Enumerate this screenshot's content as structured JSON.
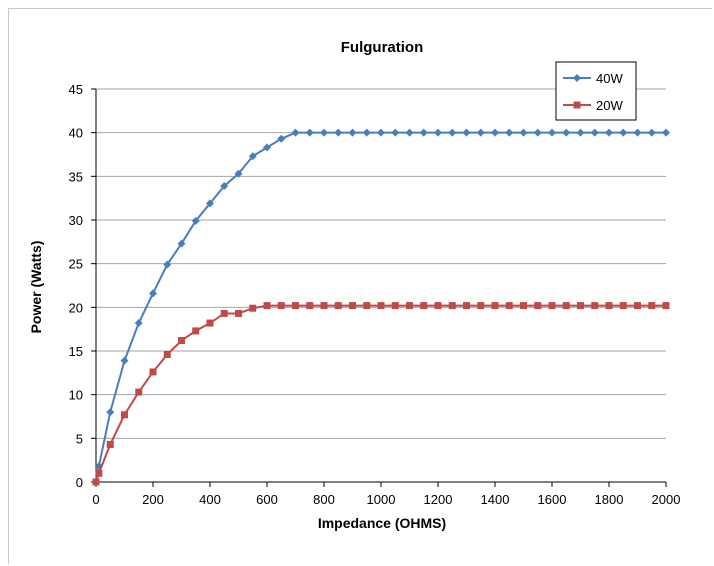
{
  "chart_data": {
    "type": "line",
    "title": "Fulguration",
    "xlabel": "Impedance (OHMS)",
    "ylabel": "Power (Watts)",
    "xlim": [
      0,
      2000
    ],
    "ylim": [
      0,
      45
    ],
    "xticks": [
      0,
      200,
      400,
      600,
      800,
      1000,
      1200,
      1400,
      1600,
      1800,
      2000
    ],
    "yticks": [
      0,
      5,
      10,
      15,
      20,
      25,
      30,
      35,
      40,
      45
    ],
    "grid": "horizontal",
    "legend_position": "top-right",
    "series": [
      {
        "name": "40W",
        "color": "#4a7ebb",
        "marker": "diamond",
        "x": [
          0,
          10,
          50,
          100,
          150,
          200,
          250,
          300,
          350,
          400,
          450,
          500,
          550,
          600,
          650,
          700,
          750,
          800,
          850,
          900,
          950,
          1000,
          1050,
          1100,
          1150,
          1200,
          1250,
          1300,
          1350,
          1400,
          1450,
          1500,
          1550,
          1600,
          1650,
          1700,
          1750,
          1800,
          1850,
          1900,
          1950,
          2000
        ],
        "y": [
          0,
          1.8,
          8.0,
          13.9,
          18.2,
          21.6,
          24.9,
          27.3,
          29.9,
          31.9,
          33.9,
          35.3,
          37.3,
          38.3,
          39.3,
          40,
          40,
          40,
          40,
          40,
          40,
          40,
          40,
          40,
          40,
          40,
          40,
          40,
          40,
          40,
          40,
          40,
          40,
          40,
          40,
          40,
          40,
          40,
          40,
          40,
          40,
          40
        ]
      },
      {
        "name": "20W",
        "color": "#be4b48",
        "marker": "square",
        "x": [
          0,
          10,
          50,
          100,
          150,
          200,
          250,
          300,
          350,
          400,
          450,
          500,
          550,
          600,
          650,
          700,
          750,
          800,
          850,
          900,
          950,
          1000,
          1050,
          1100,
          1150,
          1200,
          1250,
          1300,
          1350,
          1400,
          1450,
          1500,
          1550,
          1600,
          1650,
          1700,
          1750,
          1800,
          1850,
          1900,
          1950,
          2000
        ],
        "y": [
          0,
          1.0,
          4.3,
          7.7,
          10.3,
          12.6,
          14.6,
          16.2,
          17.3,
          18.2,
          19.3,
          19.3,
          19.9,
          20.2,
          20.2,
          20.2,
          20.2,
          20.2,
          20.2,
          20.2,
          20.2,
          20.2,
          20.2,
          20.2,
          20.2,
          20.2,
          20.2,
          20.2,
          20.2,
          20.2,
          20.2,
          20.2,
          20.2,
          20.2,
          20.2,
          20.2,
          20.2,
          20.2,
          20.2,
          20.2,
          20.2,
          20.2
        ]
      }
    ]
  }
}
